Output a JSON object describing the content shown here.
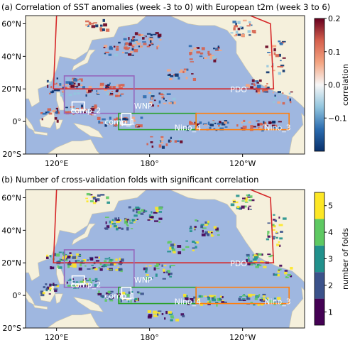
{
  "panel_a": {
    "title": "(a) Correlation of SST anomalies (week -3 to 0) with European t2m (week 3 to 6)",
    "colorbar": {
      "label": "correlation",
      "ticks": [
        "0.2",
        "0.1",
        "0.0",
        "−0.1"
      ],
      "range": [
        -0.2,
        0.2
      ],
      "colors": [
        "#08306b",
        "#2b6cb0",
        "#92c5de",
        "#f7f7f7",
        "#f4a582",
        "#d6604d",
        "#67001f"
      ]
    }
  },
  "panel_b": {
    "title": "(b) Number of cross-validation folds with significant correlation",
    "colorbar": {
      "label": "number of folds",
      "ticks": [
        "5",
        "4",
        "3",
        "2",
        "1"
      ],
      "levels": [
        1,
        2,
        3,
        4,
        5
      ],
      "colors": [
        "#440154",
        "#3b528b",
        "#21918c",
        "#5ec962",
        "#fde725"
      ]
    }
  },
  "axes": {
    "lat_ticks": [
      "60°N",
      "40°N",
      "20°N",
      "0°",
      "20°S"
    ],
    "lon_ticks": [
      "120°E",
      "180°",
      "120°W"
    ],
    "lon_range": [
      "100°E",
      "80°W"
    ],
    "lat_range": [
      "20°S",
      "65°N"
    ]
  },
  "regions": [
    {
      "name": "PDO",
      "color": "#d62728"
    },
    {
      "name": "WNP",
      "color": "#9467bd"
    },
    {
      "name": "Nino_4",
      "color": "#2ca02c"
    },
    {
      "name": "Nino_3",
      "color": "#ff7f0e"
    },
    {
      "name": "comp_1",
      "color": "#ffffff"
    },
    {
      "name": "comp_2",
      "color": "#ffffff"
    }
  ],
  "colors": {
    "ocean": "#9fb7e0",
    "land": "#f5f0dc",
    "border": "#222222"
  }
}
